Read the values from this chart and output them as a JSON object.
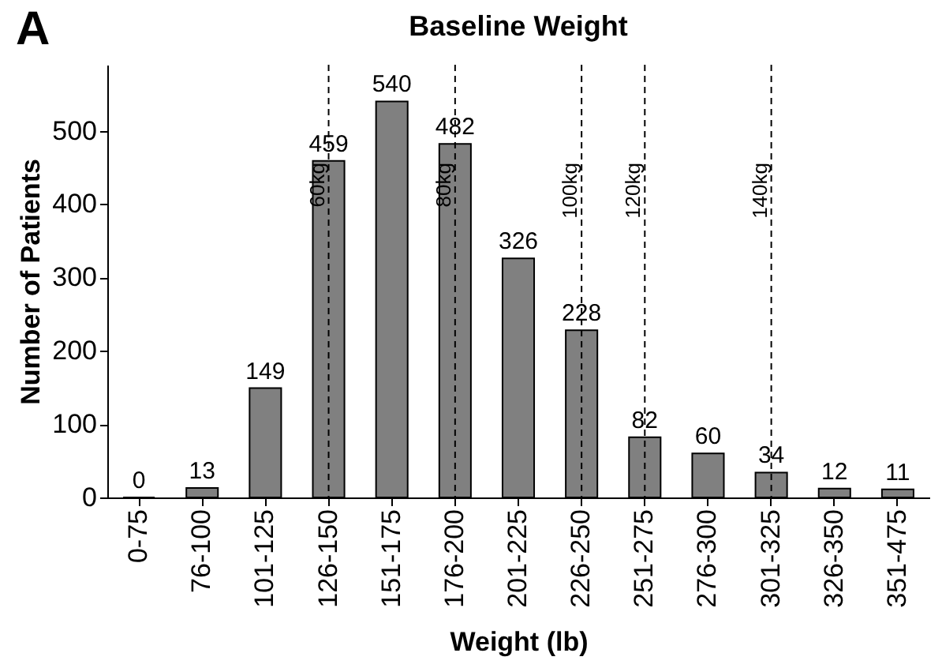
{
  "chart_data": {
    "type": "bar",
    "title": "Baseline Weight",
    "xlabel": "Weight (lb)",
    "ylabel": "Number of Patients",
    "annotations": [
      "A"
    ],
    "categories": [
      "0-75",
      "76-100",
      "101-125",
      "126-150",
      "151-175",
      "176-200",
      "201-225",
      "226-250",
      "251-275",
      "276-300",
      "301-325",
      "326-350",
      "351-475"
    ],
    "values": [
      0,
      13,
      149,
      459,
      540,
      482,
      326,
      228,
      82,
      60,
      34,
      12,
      11
    ],
    "color": "#808080",
    "data_labels": true,
    "ylim": [
      0,
      590
    ],
    "yticks": [
      0,
      100,
      200,
      300,
      400,
      500
    ],
    "grid": false,
    "ref_lines": [
      {
        "axis": "x",
        "value": "126-150",
        "label": "60kg",
        "line_style": "dashed",
        "color": "#000000"
      },
      {
        "axis": "x",
        "value": "176-200",
        "label": "80kg",
        "line_style": "dashed",
        "color": "#000000"
      },
      {
        "axis": "x",
        "value": "226-250",
        "label": "100kg",
        "line_style": "dashed",
        "color": "#000000"
      },
      {
        "axis": "x",
        "value": "251-275",
        "label": "120kg",
        "line_style": "dashed",
        "color": "#000000"
      },
      {
        "axis": "x",
        "value": "301-325",
        "label": "140kg",
        "line_style": "dashed",
        "color": "#000000"
      }
    ]
  }
}
